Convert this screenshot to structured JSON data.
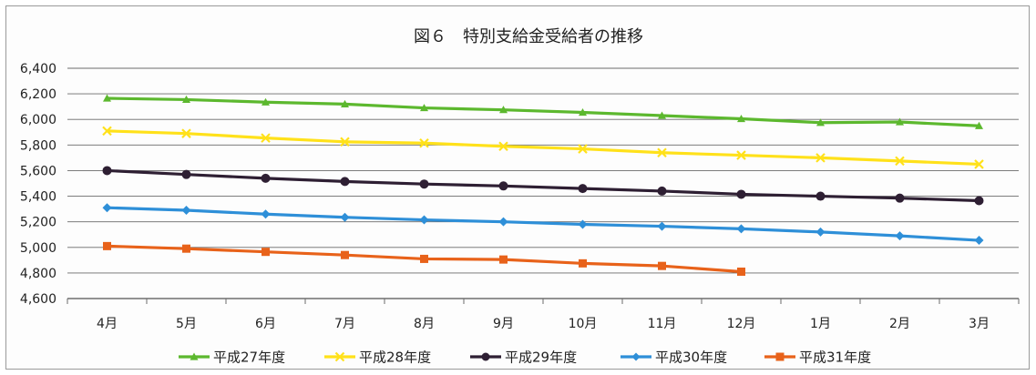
{
  "chart_data": {
    "type": "line",
    "title": "図６　特別支給金受給者の推移",
    "xlabel": "",
    "ylabel": "",
    "categories": [
      "4月",
      "5月",
      "6月",
      "7月",
      "8月",
      "9月",
      "10月",
      "11月",
      "12月",
      "1月",
      "2月",
      "3月"
    ],
    "y_ticks": [
      "4,600",
      "4,800",
      "5,000",
      "5,200",
      "5,400",
      "5,600",
      "5,800",
      "6,000",
      "6,200",
      "6,400"
    ],
    "ylim": [
      4600,
      6400
    ],
    "grid": true,
    "legend_position": "bottom",
    "series": [
      {
        "name": "平成27年度",
        "color": "#5cb82e",
        "marker": "triangle",
        "values": [
          6165,
          6155,
          6135,
          6120,
          6090,
          6075,
          6055,
          6030,
          6005,
          5975,
          5980,
          5950
        ]
      },
      {
        "name": "平成28年度",
        "color": "#ffe11a",
        "marker": "x",
        "values": [
          5910,
          5890,
          5855,
          5825,
          5815,
          5790,
          5770,
          5740,
          5720,
          5700,
          5675,
          5650
        ]
      },
      {
        "name": "平成29年度",
        "color": "#2e1f33",
        "marker": "circle",
        "values": [
          5600,
          5570,
          5540,
          5515,
          5495,
          5480,
          5460,
          5440,
          5415,
          5400,
          5385,
          5365
        ]
      },
      {
        "name": "平成30年度",
        "color": "#2e8fd8",
        "marker": "diamond",
        "values": [
          5310,
          5290,
          5260,
          5235,
          5215,
          5200,
          5180,
          5165,
          5145,
          5120,
          5090,
          5055
        ]
      },
      {
        "name": "平成31年度",
        "color": "#e8621a",
        "marker": "square",
        "values": [
          5010,
          4990,
          4965,
          4940,
          4910,
          4905,
          4875,
          4855,
          4810,
          null,
          null,
          null
        ]
      }
    ]
  }
}
